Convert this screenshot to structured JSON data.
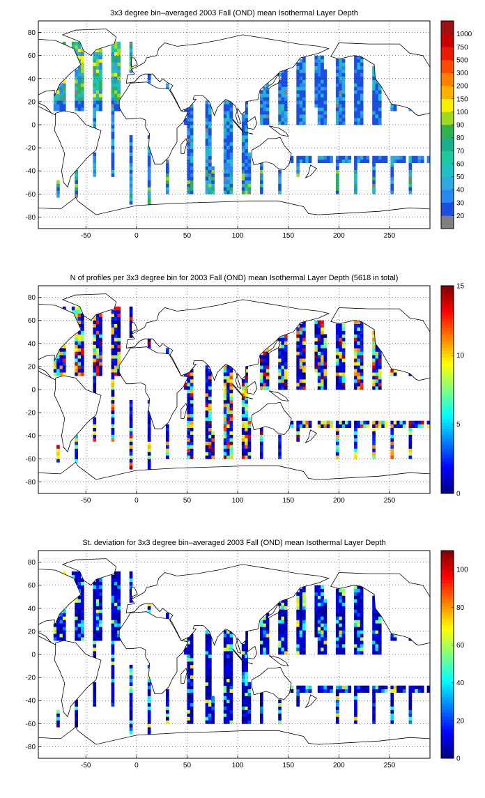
{
  "chart_data": [
    {
      "type": "heatmap",
      "title": "3x3 degree bin–averaged 2003 Fall (OND) mean Isothermal Layer Depth",
      "xlim": [
        -97,
        290
      ],
      "ylim": [
        -90,
        90
      ],
      "xticks": [
        -50,
        0,
        50,
        100,
        150,
        200,
        250
      ],
      "yticks": [
        -80,
        -60,
        -40,
        -20,
        0,
        20,
        40,
        60,
        80
      ],
      "grid": true,
      "colorbar": {
        "kind": "discrete",
        "labels": [
          "20",
          "30",
          "40",
          "50",
          "60",
          "70",
          "80",
          "90",
          "100",
          "150",
          "200",
          "300",
          "500",
          "750",
          "1000"
        ],
        "colors": [
          "#808080",
          "#1a4fe0",
          "#2a86f0",
          "#2fa8e0",
          "#1fc0c0",
          "#1cc8a0",
          "#19b088",
          "#30b050",
          "#a0d820",
          "#f8f000",
          "#ffb000",
          "#ff8000",
          "#ff4800",
          "#e81a00",
          "#c80000",
          "#a01010"
        ]
      },
      "palette": "isothermal"
    },
    {
      "type": "heatmap",
      "title": "N of profiles per 3x3 degree bin for 2003 Fall (OND) mean Isothermal Layer Depth  (5618 in total)",
      "xlim": [
        -97,
        290
      ],
      "ylim": [
        -90,
        90
      ],
      "xticks": [
        -50,
        0,
        50,
        100,
        150,
        200,
        250
      ],
      "yticks": [
        -80,
        -60,
        -40,
        -20,
        0,
        20,
        40,
        60,
        80
      ],
      "grid": true,
      "colorbar": {
        "kind": "continuous",
        "min": 0,
        "max": 15,
        "ticks": [
          0,
          5,
          10,
          15
        ]
      },
      "palette": "counts"
    },
    {
      "type": "heatmap",
      "title": "St. deviation for 3x3 degree bin–averaged 2003 Fall (OND) mean Isothermal Layer Depth",
      "xlim": [
        -97,
        290
      ],
      "ylim": [
        -90,
        90
      ],
      "xticks": [
        -50,
        0,
        50,
        100,
        150,
        200,
        250
      ],
      "yticks": [
        -80,
        -60,
        -40,
        -20,
        0,
        20,
        40,
        60,
        80
      ],
      "grid": true,
      "colorbar": {
        "kind": "continuous",
        "min": 0,
        "max": 110,
        "ticks": [
          0,
          20,
          40,
          60,
          80,
          100
        ]
      },
      "palette": "stdev"
    }
  ],
  "bins": {
    "regions": [
      {
        "lon": [
          -85,
          -5
        ],
        "lat": [
          10,
          70
        ],
        "p": 0.55
      },
      {
        "lon": [
          -60,
          -10
        ],
        "lat": [
          -45,
          10
        ],
        "p": 0.22
      },
      {
        "lon": [
          -10,
          30
        ],
        "lat": [
          30,
          60
        ],
        "p": 0.15
      },
      {
        "lon": [
          45,
          110
        ],
        "lat": [
          -25,
          25
        ],
        "p": 0.45
      },
      {
        "lon": [
          40,
          120
        ],
        "lat": [
          -60,
          -25
        ],
        "p": 0.45
      },
      {
        "lon": [
          120,
          250
        ],
        "lat": [
          0,
          60
        ],
        "p": 0.5
      },
      {
        "lon": [
          150,
          290
        ],
        "lat": [
          -35,
          -28
        ],
        "p": 0.8
      },
      {
        "lon": [
          110,
          290
        ],
        "lat": [
          -60,
          -35
        ],
        "p": 0.12
      },
      {
        "lon": [
          -97,
          -60
        ],
        "lat": [
          -65,
          -20
        ],
        "p": 0.15
      },
      {
        "lon": [
          250,
          290
        ],
        "lat": [
          10,
          50
        ],
        "p": 0.3
      },
      {
        "lon": [
          -10,
          45
        ],
        "lat": [
          -70,
          -10
        ],
        "p": 0.12
      }
    ]
  }
}
